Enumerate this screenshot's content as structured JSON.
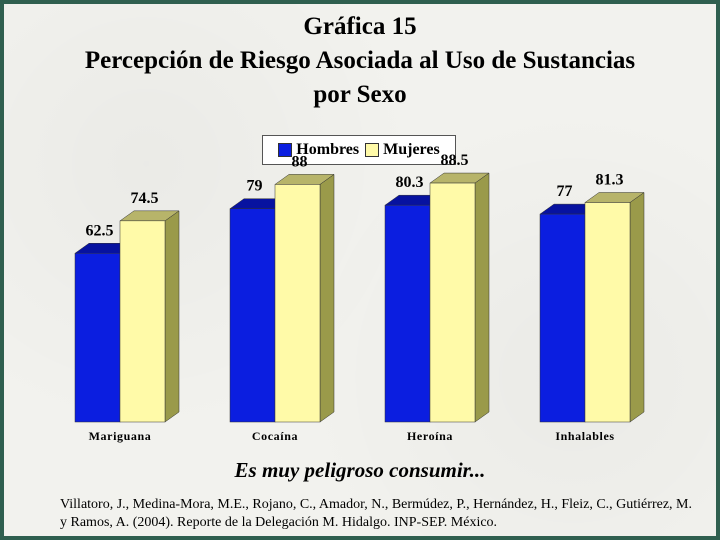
{
  "chart_data": {
    "type": "bar",
    "title": "Gráfica 15",
    "subtitle_lines": [
      "Percepción de Riesgo Asociada al Uso de Sustancias",
      "por Sexo"
    ],
    "categories": [
      "Mariguana",
      "Cocaína",
      "Heroína",
      "Inhalables"
    ],
    "series": [
      {
        "name": "Hombres",
        "values": [
          62.5,
          79,
          80.3,
          77
        ],
        "color": "#0b1ee0"
      },
      {
        "name": "Mujeres",
        "values": [
          74.5,
          88,
          88.5,
          81.3
        ],
        "color": "#fffaa8"
      }
    ],
    "value_labels": [
      [
        "62.5",
        "79",
        "80.3",
        "77"
      ],
      [
        "74.5",
        "88",
        "88.5",
        "81.3"
      ]
    ],
    "ylim": [
      0,
      100
    ],
    "xlabel": "Es muy peligroso consumir...",
    "ylabel": "",
    "grid": false,
    "legend_position": "top-center"
  },
  "source_text": "Villatoro, J., Medina-Mora, M.E., Rojano, C., Amador, N., Bermúdez, P., Hernández, H., Fleiz, C., Gutiérrez, M. y Ramos, A. (2004). Reporte de la Delegación M. Hidalgo. INP-SEP. México."
}
